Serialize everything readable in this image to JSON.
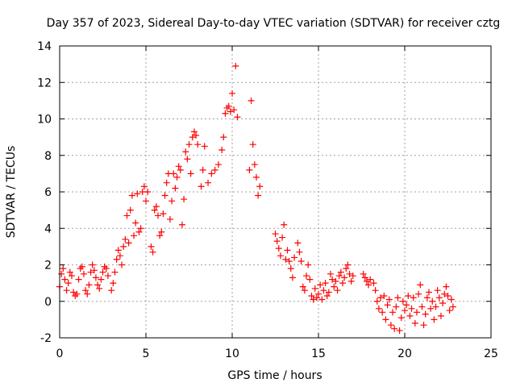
{
  "chart_data": {
    "type": "scatter",
    "title": "Day 357 of 2023, Sidereal Day-to-day VTEC variation (SDTVAR) for receiver cztg",
    "xlabel": "GPS time / hours",
    "ylabel": "SDTVAR / TECUs",
    "xlim": [
      0,
      25
    ],
    "ylim": [
      -2,
      14
    ],
    "xticks": [
      0,
      5,
      10,
      15,
      20,
      25
    ],
    "yticks": [
      -2,
      0,
      2,
      4,
      6,
      8,
      10,
      12,
      14
    ],
    "grid": true,
    "marker": "plus",
    "color": "#ff0000",
    "series": [
      {
        "name": "SDTVAR",
        "points": [
          [
            0.0,
            0.8
          ],
          [
            0.1,
            1.5
          ],
          [
            0.2,
            1.8
          ],
          [
            0.3,
            1.2
          ],
          [
            0.4,
            0.6
          ],
          [
            0.5,
            1.0
          ],
          [
            0.6,
            1.6
          ],
          [
            0.7,
            1.4
          ],
          [
            0.8,
            0.5
          ],
          [
            0.9,
            0.3
          ],
          [
            1.0,
            0.4
          ],
          [
            1.1,
            1.2
          ],
          [
            1.2,
            1.8
          ],
          [
            1.3,
            1.9
          ],
          [
            1.4,
            1.5
          ],
          [
            1.5,
            0.6
          ],
          [
            1.6,
            0.4
          ],
          [
            1.7,
            0.9
          ],
          [
            1.8,
            1.6
          ],
          [
            1.9,
            2.0
          ],
          [
            2.0,
            1.7
          ],
          [
            2.1,
            1.3
          ],
          [
            2.2,
            0.9
          ],
          [
            2.3,
            0.7
          ],
          [
            2.4,
            1.2
          ],
          [
            2.5,
            1.6
          ],
          [
            2.6,
            1.9
          ],
          [
            2.7,
            1.8
          ],
          [
            2.8,
            1.4
          ],
          [
            3.0,
            0.6
          ],
          [
            3.1,
            1.0
          ],
          [
            3.2,
            1.6
          ],
          [
            3.3,
            2.3
          ],
          [
            3.4,
            2.8
          ],
          [
            3.5,
            2.5
          ],
          [
            3.6,
            2.0
          ],
          [
            3.7,
            3.0
          ],
          [
            3.8,
            3.4
          ],
          [
            3.9,
            4.7
          ],
          [
            4.0,
            3.2
          ],
          [
            4.1,
            5.0
          ],
          [
            4.2,
            5.8
          ],
          [
            4.3,
            3.6
          ],
          [
            4.4,
            4.3
          ],
          [
            4.5,
            5.9
          ],
          [
            4.6,
            3.8
          ],
          [
            4.7,
            4.0
          ],
          [
            4.8,
            6.0
          ],
          [
            4.9,
            6.3
          ],
          [
            5.0,
            5.5
          ],
          [
            5.1,
            6.0
          ],
          [
            5.3,
            3.0
          ],
          [
            5.4,
            2.7
          ],
          [
            5.5,
            5.0
          ],
          [
            5.6,
            5.2
          ],
          [
            5.7,
            4.7
          ],
          [
            5.8,
            3.6
          ],
          [
            5.9,
            3.8
          ],
          [
            6.0,
            4.8
          ],
          [
            6.1,
            5.8
          ],
          [
            6.2,
            6.5
          ],
          [
            6.3,
            7.0
          ],
          [
            6.4,
            4.5
          ],
          [
            6.5,
            5.5
          ],
          [
            6.6,
            7.0
          ],
          [
            6.7,
            6.2
          ],
          [
            6.8,
            6.8
          ],
          [
            6.9,
            7.4
          ],
          [
            7.0,
            7.2
          ],
          [
            7.1,
            4.2
          ],
          [
            7.2,
            5.6
          ],
          [
            7.3,
            8.2
          ],
          [
            7.4,
            7.8
          ],
          [
            7.5,
            8.6
          ],
          [
            7.6,
            7.0
          ],
          [
            7.7,
            9.0
          ],
          [
            7.8,
            9.3
          ],
          [
            7.9,
            9.1
          ],
          [
            8.0,
            8.6
          ],
          [
            8.2,
            6.3
          ],
          [
            8.3,
            7.2
          ],
          [
            8.4,
            8.5
          ],
          [
            8.6,
            6.5
          ],
          [
            8.8,
            7.0
          ],
          [
            9.0,
            7.2
          ],
          [
            9.2,
            7.5
          ],
          [
            9.4,
            8.3
          ],
          [
            9.5,
            9.0
          ],
          [
            9.6,
            10.3
          ],
          [
            9.7,
            10.6
          ],
          [
            9.8,
            10.7
          ],
          [
            9.9,
            10.4
          ],
          [
            10.0,
            11.4
          ],
          [
            10.1,
            10.5
          ],
          [
            10.2,
            12.9
          ],
          [
            10.3,
            10.1
          ],
          [
            11.0,
            7.2
          ],
          [
            11.1,
            11.0
          ],
          [
            11.2,
            8.6
          ],
          [
            11.3,
            7.5
          ],
          [
            11.4,
            6.8
          ],
          [
            11.5,
            5.8
          ],
          [
            11.6,
            6.3
          ],
          [
            12.5,
            3.7
          ],
          [
            12.6,
            3.3
          ],
          [
            12.7,
            2.9
          ],
          [
            12.8,
            2.5
          ],
          [
            12.9,
            3.5
          ],
          [
            13.0,
            4.2
          ],
          [
            13.1,
            2.3
          ],
          [
            13.2,
            2.8
          ],
          [
            13.3,
            2.2
          ],
          [
            13.4,
            1.8
          ],
          [
            13.5,
            1.3
          ],
          [
            13.6,
            2.4
          ],
          [
            13.8,
            3.2
          ],
          [
            13.9,
            2.7
          ],
          [
            14.0,
            2.2
          ],
          [
            14.1,
            0.8
          ],
          [
            14.2,
            0.6
          ],
          [
            14.3,
            1.4
          ],
          [
            14.4,
            2.0
          ],
          [
            14.5,
            1.2
          ],
          [
            14.6,
            0.3
          ],
          [
            14.7,
            0.1
          ],
          [
            14.8,
            0.7
          ],
          [
            14.9,
            0.2
          ],
          [
            15.0,
            0.4
          ],
          [
            15.1,
            0.9
          ],
          [
            15.2,
            0.1
          ],
          [
            15.3,
            0.6
          ],
          [
            15.4,
            1.0
          ],
          [
            15.5,
            0.3
          ],
          [
            15.6,
            0.5
          ],
          [
            15.7,
            1.5
          ],
          [
            15.8,
            1.2
          ],
          [
            15.9,
            0.8
          ],
          [
            16.0,
            1.1
          ],
          [
            16.1,
            0.6
          ],
          [
            16.2,
            1.4
          ],
          [
            16.3,
            1.6
          ],
          [
            16.4,
            1.0
          ],
          [
            16.5,
            1.3
          ],
          [
            16.6,
            1.8
          ],
          [
            16.7,
            2.0
          ],
          [
            16.8,
            1.5
          ],
          [
            16.9,
            1.1
          ],
          [
            17.0,
            1.4
          ],
          [
            17.6,
            1.5
          ],
          [
            17.7,
            1.3
          ],
          [
            17.8,
            1.1
          ],
          [
            17.9,
            0.9
          ],
          [
            18.0,
            1.2
          ],
          [
            18.2,
            1.0
          ],
          [
            18.3,
            0.6
          ],
          [
            18.4,
            0.0
          ],
          [
            18.5,
            -0.4
          ],
          [
            18.6,
            0.2
          ],
          [
            18.7,
            -0.6
          ],
          [
            18.8,
            0.3
          ],
          [
            18.9,
            -1.0
          ],
          [
            19.0,
            -0.2
          ],
          [
            19.1,
            0.1
          ],
          [
            19.2,
            -1.3
          ],
          [
            19.3,
            -0.6
          ],
          [
            19.4,
            -1.5
          ],
          [
            19.5,
            -0.3
          ],
          [
            19.6,
            0.2
          ],
          [
            19.7,
            -1.6
          ],
          [
            19.8,
            -0.9
          ],
          [
            19.9,
            0.0
          ],
          [
            20.0,
            -0.5
          ],
          [
            20.1,
            -0.2
          ],
          [
            20.2,
            0.3
          ],
          [
            20.3,
            -0.8
          ],
          [
            20.4,
            -0.4
          ],
          [
            20.5,
            0.2
          ],
          [
            20.6,
            -1.2
          ],
          [
            20.7,
            -0.6
          ],
          [
            20.8,
            0.4
          ],
          [
            20.9,
            0.9
          ],
          [
            21.0,
            -0.3
          ],
          [
            21.1,
            -1.3
          ],
          [
            21.2,
            -0.7
          ],
          [
            21.3,
            0.2
          ],
          [
            21.4,
            0.5
          ],
          [
            21.5,
            -0.4
          ],
          [
            21.6,
            0.0
          ],
          [
            21.7,
            -1.0
          ],
          [
            21.8,
            -0.3
          ],
          [
            21.9,
            0.6
          ],
          [
            22.0,
            0.2
          ],
          [
            22.1,
            -0.8
          ],
          [
            22.2,
            -0.1
          ],
          [
            22.3,
            0.4
          ],
          [
            22.4,
            0.8
          ],
          [
            22.5,
            0.3
          ],
          [
            22.6,
            -0.5
          ],
          [
            22.7,
            0.1
          ],
          [
            22.8,
            -0.3
          ]
        ]
      }
    ]
  }
}
